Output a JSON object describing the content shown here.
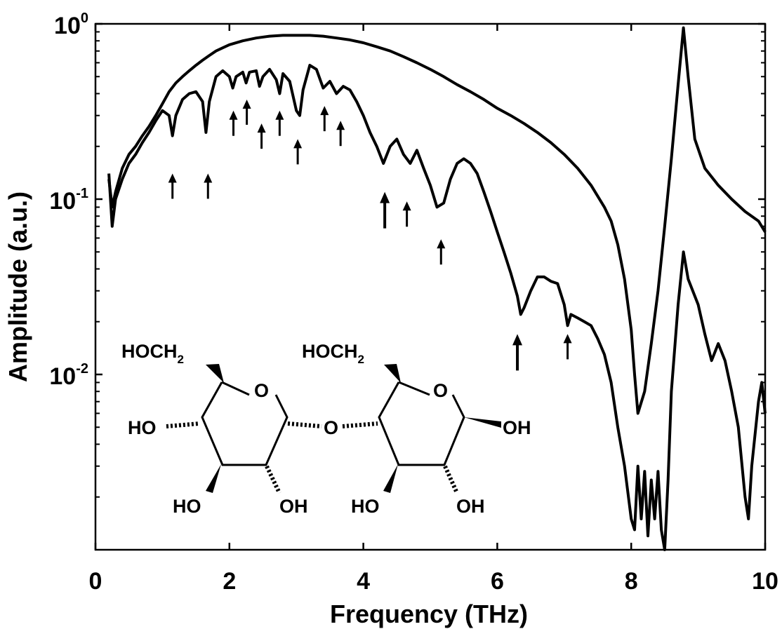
{
  "chart_data": {
    "type": "line",
    "title": "",
    "xlabel": "Frequency (THz)",
    "ylabel": "Amplitude (a.u.)",
    "xlim": [
      0,
      10
    ],
    "ylim": [
      0.001,
      1
    ],
    "yscale": "log",
    "grid": false,
    "legend": "none",
    "x_ticks": [
      {
        "value": 0,
        "label": "0"
      },
      {
        "value": 2,
        "label": "2"
      },
      {
        "value": 4,
        "label": "4"
      },
      {
        "value": 6,
        "label": "6"
      },
      {
        "value": 8,
        "label": "8"
      },
      {
        "value": 10,
        "label": "10"
      }
    ],
    "y_ticks": [
      {
        "value": 1,
        "base": "10",
        "exp": "0"
      },
      {
        "value": 0.1,
        "base": "10",
        "exp": "-1"
      },
      {
        "value": 0.01,
        "base": "10",
        "exp": "-2"
      }
    ],
    "series": [
      {
        "points": [
          [
            0.2,
            0.13
          ],
          [
            0.25,
            0.09
          ],
          [
            0.3,
            0.11
          ],
          [
            0.4,
            0.15
          ],
          [
            0.5,
            0.18
          ],
          [
            0.6,
            0.2
          ],
          [
            0.7,
            0.23
          ],
          [
            0.8,
            0.26
          ],
          [
            0.9,
            0.3
          ],
          [
            1.0,
            0.35
          ],
          [
            1.1,
            0.41
          ],
          [
            1.2,
            0.46
          ],
          [
            1.3,
            0.5
          ],
          [
            1.4,
            0.54
          ],
          [
            1.5,
            0.58
          ],
          [
            1.6,
            0.62
          ],
          [
            1.7,
            0.66
          ],
          [
            1.8,
            0.7
          ],
          [
            1.9,
            0.73
          ],
          [
            2.0,
            0.76
          ],
          [
            2.2,
            0.8
          ],
          [
            2.4,
            0.83
          ],
          [
            2.6,
            0.85
          ],
          [
            2.8,
            0.86
          ],
          [
            3.0,
            0.86
          ],
          [
            3.2,
            0.86
          ],
          [
            3.4,
            0.85
          ],
          [
            3.6,
            0.83
          ],
          [
            3.8,
            0.81
          ],
          [
            4.0,
            0.78
          ],
          [
            4.2,
            0.74
          ],
          [
            4.4,
            0.7
          ],
          [
            4.6,
            0.65
          ],
          [
            4.8,
            0.6
          ],
          [
            5.0,
            0.55
          ],
          [
            5.2,
            0.5
          ],
          [
            5.4,
            0.45
          ],
          [
            5.6,
            0.41
          ],
          [
            5.8,
            0.37
          ],
          [
            6.0,
            0.33
          ],
          [
            6.2,
            0.3
          ],
          [
            6.4,
            0.27
          ],
          [
            6.6,
            0.24
          ],
          [
            6.8,
            0.21
          ],
          [
            7.0,
            0.18
          ],
          [
            7.2,
            0.15
          ],
          [
            7.4,
            0.12
          ],
          [
            7.6,
            0.09
          ],
          [
            7.7,
            0.075
          ],
          [
            7.8,
            0.055
          ],
          [
            7.9,
            0.035
          ],
          [
            8.0,
            0.018
          ],
          [
            8.05,
            0.01
          ],
          [
            8.1,
            0.006
          ],
          [
            8.2,
            0.008
          ],
          [
            8.3,
            0.015
          ],
          [
            8.4,
            0.03
          ],
          [
            8.5,
            0.07
          ],
          [
            8.6,
            0.17
          ],
          [
            8.7,
            0.45
          ],
          [
            8.78,
            0.95
          ],
          [
            8.85,
            0.5
          ],
          [
            8.95,
            0.22
          ],
          [
            9.1,
            0.15
          ],
          [
            9.3,
            0.12
          ],
          [
            9.5,
            0.1
          ],
          [
            9.7,
            0.085
          ],
          [
            9.9,
            0.075
          ],
          [
            10.0,
            0.065
          ]
        ]
      },
      {
        "points": [
          [
            0.2,
            0.14
          ],
          [
            0.25,
            0.07
          ],
          [
            0.3,
            0.1
          ],
          [
            0.4,
            0.13
          ],
          [
            0.5,
            0.16
          ],
          [
            0.6,
            0.18
          ],
          [
            0.7,
            0.21
          ],
          [
            0.8,
            0.24
          ],
          [
            0.9,
            0.28
          ],
          [
            1.0,
            0.32
          ],
          [
            1.1,
            0.3
          ],
          [
            1.15,
            0.23
          ],
          [
            1.2,
            0.3
          ],
          [
            1.3,
            0.37
          ],
          [
            1.4,
            0.4
          ],
          [
            1.5,
            0.41
          ],
          [
            1.6,
            0.36
          ],
          [
            1.65,
            0.24
          ],
          [
            1.7,
            0.36
          ],
          [
            1.8,
            0.5
          ],
          [
            1.9,
            0.54
          ],
          [
            2.0,
            0.5
          ],
          [
            2.05,
            0.43
          ],
          [
            2.1,
            0.5
          ],
          [
            2.2,
            0.53
          ],
          [
            2.25,
            0.46
          ],
          [
            2.3,
            0.53
          ],
          [
            2.4,
            0.54
          ],
          [
            2.45,
            0.44
          ],
          [
            2.5,
            0.5
          ],
          [
            2.6,
            0.55
          ],
          [
            2.7,
            0.48
          ],
          [
            2.75,
            0.4
          ],
          [
            2.8,
            0.52
          ],
          [
            2.9,
            0.47
          ],
          [
            3.0,
            0.32
          ],
          [
            3.05,
            0.3
          ],
          [
            3.1,
            0.42
          ],
          [
            3.2,
            0.58
          ],
          [
            3.3,
            0.55
          ],
          [
            3.4,
            0.43
          ],
          [
            3.5,
            0.47
          ],
          [
            3.6,
            0.4
          ],
          [
            3.7,
            0.44
          ],
          [
            3.8,
            0.42
          ],
          [
            3.9,
            0.36
          ],
          [
            4.0,
            0.3
          ],
          [
            4.1,
            0.24
          ],
          [
            4.2,
            0.2
          ],
          [
            4.3,
            0.16
          ],
          [
            4.4,
            0.2
          ],
          [
            4.5,
            0.22
          ],
          [
            4.6,
            0.18
          ],
          [
            4.7,
            0.16
          ],
          [
            4.8,
            0.19
          ],
          [
            4.9,
            0.15
          ],
          [
            5.0,
            0.12
          ],
          [
            5.1,
            0.09
          ],
          [
            5.2,
            0.095
          ],
          [
            5.3,
            0.13
          ],
          [
            5.4,
            0.16
          ],
          [
            5.5,
            0.17
          ],
          [
            5.6,
            0.16
          ],
          [
            5.7,
            0.14
          ],
          [
            5.8,
            0.11
          ],
          [
            5.9,
            0.085
          ],
          [
            6.0,
            0.065
          ],
          [
            6.1,
            0.05
          ],
          [
            6.2,
            0.038
          ],
          [
            6.3,
            0.028
          ],
          [
            6.35,
            0.022
          ],
          [
            6.4,
            0.024
          ],
          [
            6.5,
            0.03
          ],
          [
            6.6,
            0.036
          ],
          [
            6.7,
            0.036
          ],
          [
            6.8,
            0.034
          ],
          [
            6.9,
            0.033
          ],
          [
            7.0,
            0.025
          ],
          [
            7.05,
            0.019
          ],
          [
            7.1,
            0.022
          ],
          [
            7.2,
            0.021
          ],
          [
            7.3,
            0.02
          ],
          [
            7.4,
            0.019
          ],
          [
            7.5,
            0.016
          ],
          [
            7.6,
            0.013
          ],
          [
            7.7,
            0.009
          ],
          [
            7.8,
            0.005
          ],
          [
            7.9,
            0.003
          ],
          [
            8.0,
            0.0015
          ],
          [
            8.05,
            0.0013
          ],
          [
            8.1,
            0.003
          ],
          [
            8.15,
            0.0015
          ],
          [
            8.2,
            0.0028
          ],
          [
            8.25,
            0.0012
          ],
          [
            8.3,
            0.0025
          ],
          [
            8.35,
            0.0015
          ],
          [
            8.4,
            0.0028
          ],
          [
            8.45,
            0.0013
          ],
          [
            8.5,
            0.001
          ],
          [
            8.55,
            0.0025
          ],
          [
            8.6,
            0.008
          ],
          [
            8.7,
            0.025
          ],
          [
            8.78,
            0.05
          ],
          [
            8.85,
            0.035
          ],
          [
            9.0,
            0.025
          ],
          [
            9.1,
            0.017
          ],
          [
            9.2,
            0.012
          ],
          [
            9.3,
            0.015
          ],
          [
            9.4,
            0.012
          ],
          [
            9.5,
            0.008
          ],
          [
            9.6,
            0.005
          ],
          [
            9.7,
            0.002
          ],
          [
            9.75,
            0.0015
          ],
          [
            9.8,
            0.003
          ],
          [
            9.9,
            0.007
          ],
          [
            9.95,
            0.009
          ],
          [
            10.0,
            0.006
          ]
        ]
      }
    ],
    "annotations": {
      "arrows": [
        {
          "x": 1.15,
          "y": 0.14,
          "size": "small"
        },
        {
          "x": 1.68,
          "y": 0.14,
          "size": "small"
        },
        {
          "x": 2.06,
          "y": 0.32,
          "size": "small"
        },
        {
          "x": 2.26,
          "y": 0.37,
          "size": "small"
        },
        {
          "x": 2.48,
          "y": 0.27,
          "size": "small"
        },
        {
          "x": 2.75,
          "y": 0.32,
          "size": "small"
        },
        {
          "x": 3.02,
          "y": 0.22,
          "size": "small"
        },
        {
          "x": 3.42,
          "y": 0.34,
          "size": "small"
        },
        {
          "x": 3.66,
          "y": 0.28,
          "size": "small"
        },
        {
          "x": 4.32,
          "y": 0.11,
          "size": "large"
        },
        {
          "x": 4.65,
          "y": 0.097,
          "size": "small"
        },
        {
          "x": 5.16,
          "y": 0.059,
          "size": "small"
        },
        {
          "x": 6.3,
          "y": 0.017,
          "size": "large"
        },
        {
          "x": 7.05,
          "y": 0.017,
          "size": "small"
        }
      ],
      "structure_labels": {
        "left_ring": {
          "ch2": "HOCH",
          "ch2_sub": "2",
          "oh_left": "HO",
          "oh_bottom_left": "HO",
          "oh_bottom_right": "OH"
        },
        "bridge_o": "O",
        "ring_o": "O",
        "right_ring": {
          "ch2": "HOCH",
          "ch2_sub": "2",
          "oh_right": "OH",
          "oh_bottom_left": "HO",
          "oh_bottom_right": "OH"
        }
      }
    }
  }
}
